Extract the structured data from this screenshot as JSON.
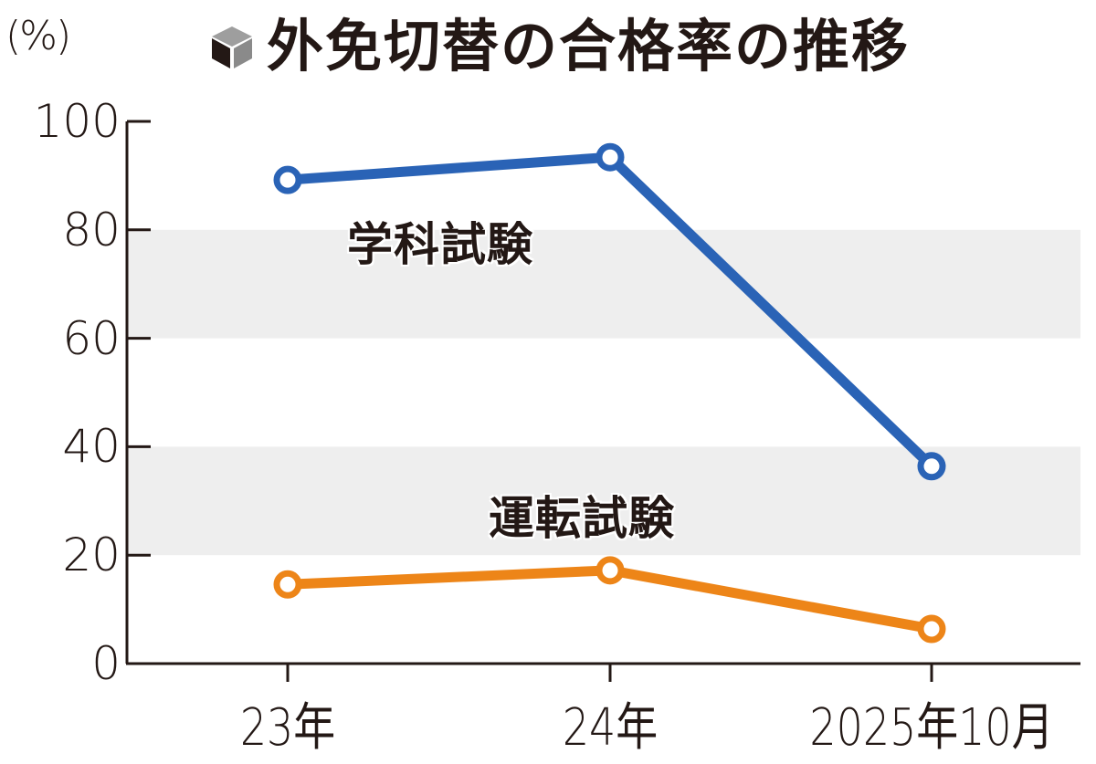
{
  "header": {
    "title": "外免切替の合格率の推移",
    "unit": "(%)",
    "title_icon": "cube-icon"
  },
  "colors": {
    "gakka": "#2a63b6",
    "unten": "#ed8518",
    "band": "#eeeeee",
    "axis": "#231815"
  },
  "labels": {
    "gakka": "学科試験",
    "unten": "運転試験"
  },
  "yticks": [
    "100",
    "80",
    "60",
    "40",
    "20",
    "0"
  ],
  "xticks": [
    "23年",
    "24年",
    "2025年10月"
  ],
  "chart_data": {
    "type": "line",
    "title": "外免切替の合格率の推移",
    "xlabel": "",
    "ylabel": "(%)",
    "categories": [
      "23年",
      "24年",
      "2025年10月"
    ],
    "series": [
      {
        "name": "学科試験",
        "values": [
          89.2,
          93.4,
          36.4
        ],
        "color": "#2a63b6"
      },
      {
        "name": "運転試験",
        "values": [
          14.6,
          17.2,
          6.4
        ],
        "color": "#ed8518"
      }
    ],
    "ylim": [
      0,
      100
    ],
    "yticks": [
      0,
      20,
      40,
      60,
      80,
      100
    ],
    "grid": "alternating bands at 20-40 and 60-80",
    "legend": "direct labels near lines"
  }
}
